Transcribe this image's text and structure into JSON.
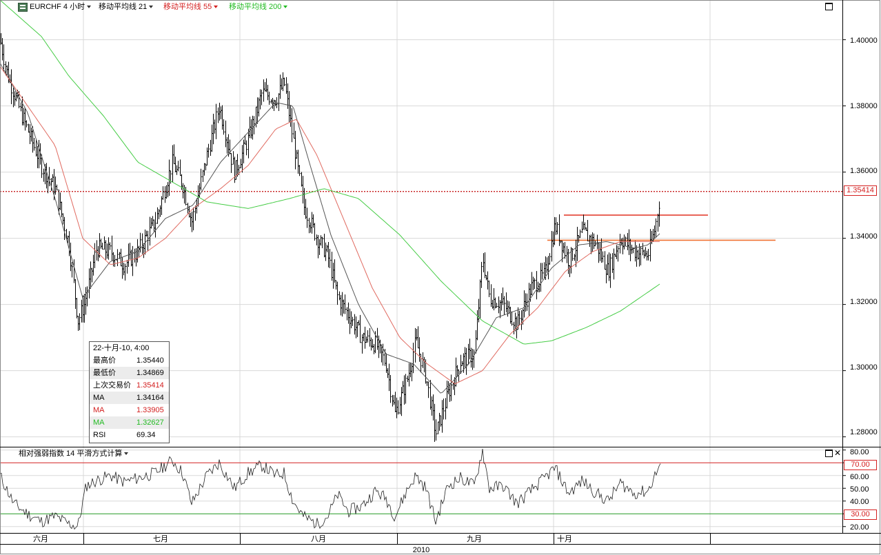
{
  "header": {
    "symbol": "EURCHF",
    "timeframe": "4 小时",
    "ma1_label": "移动平均线 21",
    "ma2_label": "移动平均线 55",
    "ma3_label": "移动平均线 200",
    "ma2_color": "#d42020",
    "ma3_color": "#22bb22"
  },
  "info_box": {
    "title": "22-十月-10, 4:00",
    "rows": [
      {
        "label": "最高价",
        "value": "1.35440",
        "color": "#000000"
      },
      {
        "label": "最低价",
        "value": "1.34869",
        "color": "#000000"
      },
      {
        "label": "上次交易价",
        "value": "1.35414",
        "color": "#d42020"
      },
      {
        "label": "MA",
        "value": "1.34164",
        "color": "#000000"
      },
      {
        "label": "MA",
        "value": "1.33905",
        "color": "#d42020"
      },
      {
        "label": "MA",
        "value": "1.32627",
        "color": "#22bb22"
      },
      {
        "label": "RSI",
        "value": "69.34",
        "color": "#000000"
      }
    ]
  },
  "rsi_panel": {
    "title": "相对强弱指数 14 平滑方式计算"
  },
  "last_price_badge": "1.35414",
  "rsi_70_badge": "70.00",
  "rsi_30_badge": "30.00",
  "x_axis": {
    "months": [
      "六月",
      "七月",
      "八月",
      "九月",
      "十月"
    ],
    "year": "2010"
  },
  "chart_data": [
    {
      "type": "line",
      "title": "EURCHF 4 小时",
      "price_axis_ticks": [
        "1.40000",
        "1.38000",
        "1.36000",
        "1.34000",
        "1.32000",
        "1.30000",
        "1.28000"
      ],
      "ylim": [
        1.277,
        1.412
      ],
      "last_price": 1.35414,
      "horizontal_lines": [
        {
          "name": "resistance",
          "value": 1.347,
          "color": "#e03020"
        },
        {
          "name": "support",
          "value": 1.3394,
          "color": "#f07030"
        }
      ],
      "price_anchors": [
        [
          0,
          1.4
        ],
        [
          10,
          1.39
        ],
        [
          30,
          1.378
        ],
        [
          60,
          1.362
        ],
        [
          80,
          1.355
        ],
        [
          100,
          1.338
        ],
        [
          113,
          1.315
        ],
        [
          122,
          1.32
        ],
        [
          140,
          1.337
        ],
        [
          160,
          1.336
        ],
        [
          180,
          1.332
        ],
        [
          200,
          1.336
        ],
        [
          225,
          1.345
        ],
        [
          250,
          1.363
        ],
        [
          265,
          1.356
        ],
        [
          278,
          1.345
        ],
        [
          300,
          1.365
        ],
        [
          318,
          1.38
        ],
        [
          340,
          1.36
        ],
        [
          360,
          1.37
        ],
        [
          380,
          1.384
        ],
        [
          400,
          1.382
        ],
        [
          412,
          1.387
        ],
        [
          425,
          1.37
        ],
        [
          440,
          1.35
        ],
        [
          460,
          1.34
        ],
        [
          475,
          1.335
        ],
        [
          490,
          1.322
        ],
        [
          505,
          1.317
        ],
        [
          525,
          1.31
        ],
        [
          545,
          1.308
        ],
        [
          560,
          1.302
        ],
        [
          573,
          1.287
        ],
        [
          590,
          1.297
        ],
        [
          603,
          1.309
        ],
        [
          618,
          1.298
        ],
        [
          632,
          1.281
        ],
        [
          650,
          1.293
        ],
        [
          668,
          1.303
        ],
        [
          688,
          1.305
        ],
        [
          700,
          1.334
        ],
        [
          710,
          1.322
        ],
        [
          730,
          1.32
        ],
        [
          750,
          1.314
        ],
        [
          770,
          1.325
        ],
        [
          790,
          1.329
        ],
        [
          805,
          1.344
        ],
        [
          825,
          1.333
        ],
        [
          845,
          1.342
        ],
        [
          865,
          1.338
        ],
        [
          882,
          1.33
        ],
        [
          900,
          1.34
        ],
        [
          920,
          1.336
        ],
        [
          940,
          1.335
        ],
        [
          950,
          1.343
        ],
        [
          958,
          1.354
        ]
      ],
      "moving_averages": [
        {
          "name": "移动平均线 21",
          "color": "#555555",
          "points": [
            [
              0,
              1.393
            ],
            [
              40,
              1.378
            ],
            [
              80,
              1.352
            ],
            [
              120,
              1.322
            ],
            [
              160,
              1.333
            ],
            [
              200,
              1.336
            ],
            [
              240,
              1.346
            ],
            [
              280,
              1.35
            ],
            [
              320,
              1.363
            ],
            [
              360,
              1.372
            ],
            [
              400,
              1.381
            ],
            [
              425,
              1.38
            ],
            [
              450,
              1.362
            ],
            [
              480,
              1.341
            ],
            [
              520,
              1.32
            ],
            [
              560,
              1.305
            ],
            [
              600,
              1.302
            ],
            [
              640,
              1.293
            ],
            [
              680,
              1.302
            ],
            [
              720,
              1.316
            ],
            [
              760,
              1.319
            ],
            [
              800,
              1.331
            ],
            [
              840,
              1.338
            ],
            [
              880,
              1.339
            ],
            [
              920,
              1.337
            ],
            [
              940,
              1.338
            ],
            [
              958,
              1.3416
            ]
          ]
        },
        {
          "name": "移动平均线 55",
          "color": "#e06a60",
          "points": [
            [
              0,
              1.392
            ],
            [
              40,
              1.38
            ],
            [
              80,
              1.368
            ],
            [
              120,
              1.34
            ],
            [
              160,
              1.332
            ],
            [
              200,
              1.334
            ],
            [
              240,
              1.34
            ],
            [
              280,
              1.349
            ],
            [
              320,
              1.355
            ],
            [
              360,
              1.362
            ],
            [
              400,
              1.373
            ],
            [
              430,
              1.376
            ],
            [
              460,
              1.365
            ],
            [
              500,
              1.345
            ],
            [
              540,
              1.325
            ],
            [
              580,
              1.31
            ],
            [
              620,
              1.302
            ],
            [
              660,
              1.296
            ],
            [
              700,
              1.3
            ],
            [
              740,
              1.311
            ],
            [
              780,
              1.319
            ],
            [
              820,
              1.33
            ],
            [
              860,
              1.336
            ],
            [
              900,
              1.339
            ],
            [
              958,
              1.339
            ]
          ]
        },
        {
          "name": "移动平均线 200",
          "color": "#44cc44",
          "points": [
            [
              0,
              1.412
            ],
            [
              60,
              1.401
            ],
            [
              100,
              1.389
            ],
            [
              150,
              1.377
            ],
            [
              200,
              1.363
            ],
            [
              250,
              1.357
            ],
            [
              300,
              1.351
            ],
            [
              360,
              1.349
            ],
            [
              420,
              1.352
            ],
            [
              470,
              1.355
            ],
            [
              520,
              1.352
            ],
            [
              580,
              1.341
            ],
            [
              640,
              1.327
            ],
            [
              700,
              1.315
            ],
            [
              760,
              1.308
            ],
            [
              800,
              1.309
            ],
            [
              850,
              1.313
            ],
            [
              900,
              1.318
            ],
            [
              958,
              1.3263
            ]
          ]
        }
      ]
    },
    {
      "type": "line",
      "title": "相对强弱指数 14 平滑方式计算",
      "ylim": [
        15,
        82
      ],
      "axis_ticks": [
        "80.00",
        "70.00",
        "60.00",
        "50.00",
        "40.00",
        "30.00",
        "20.00"
      ],
      "levels": [
        70,
        30
      ],
      "series": [
        {
          "values_x": [
            0,
            20,
            40,
            60,
            80,
            100,
            113,
            125,
            140,
            160,
            180,
            200,
            225,
            250,
            265,
            278,
            300,
            318,
            340,
            360,
            380,
            400,
            412,
            425,
            440,
            460,
            475,
            490,
            505,
            525,
            545,
            560,
            573,
            590,
            603,
            618,
            632,
            650,
            668,
            688,
            700,
            710,
            730,
            750,
            770,
            790,
            805,
            825,
            845,
            865,
            882,
            900,
            920,
            940,
            950,
            958
          ],
          "values": [
            60,
            38,
            30,
            24,
            28,
            22,
            20,
            52,
            56,
            60,
            55,
            58,
            62,
            72,
            62,
            38,
            60,
            70,
            50,
            62,
            68,
            60,
            62,
            40,
            28,
            22,
            28,
            45,
            32,
            36,
            48,
            42,
            28,
            48,
            60,
            50,
            24,
            52,
            58,
            52,
            80,
            50,
            52,
            38,
            48,
            58,
            66,
            46,
            56,
            46,
            40,
            54,
            46,
            48,
            60,
            69
          ]
        }
      ]
    }
  ]
}
